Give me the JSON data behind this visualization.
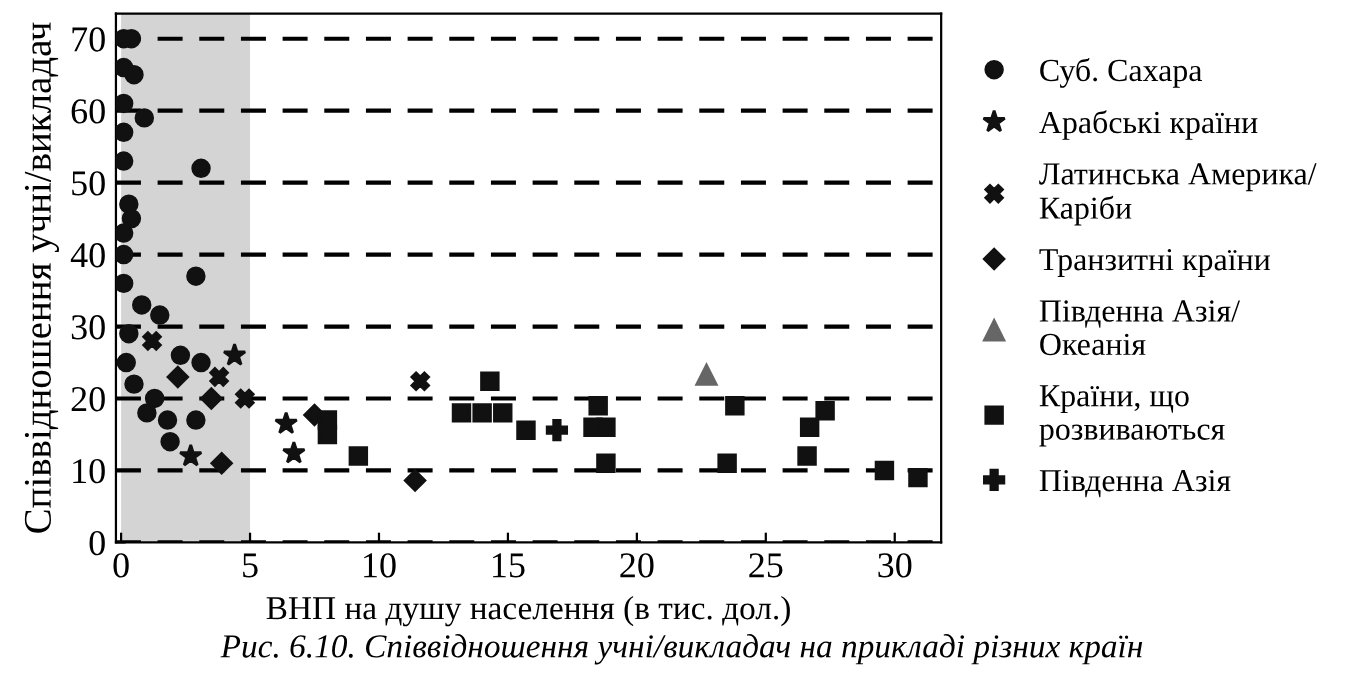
{
  "chart_data": {
    "type": "scatter",
    "xlabel": "ВНП на душу населення (в тис. дол.)",
    "ylabel": "Співвідношення учні/викладач",
    "annotations": [
      "Рис. 6.10. Співвідношення учні/викладач на прикладі різних країн"
    ],
    "xlim": [
      -0.2,
      31.8
    ],
    "ylim": [
      0,
      73.5
    ],
    "xticks": [
      0,
      5,
      10,
      15,
      20,
      25,
      30
    ],
    "yticks": [
      0,
      10,
      20,
      30,
      40,
      50,
      60,
      70
    ],
    "grid": "y",
    "legend": "right",
    "bands": [
      {
        "axis": "x",
        "from": 0,
        "to": 5,
        "color": "#d4d4d4"
      }
    ],
    "series": [
      {
        "name": "Суб. Сахара",
        "color": "#111111",
        "marker": "circle",
        "x": [
          0.1,
          0.4,
          0.1,
          0.5,
          0.1,
          0.9,
          0.1,
          0.1,
          3.1,
          0.3,
          0.4,
          0.1,
          0.1,
          2.9,
          0.1,
          0.8,
          1.5,
          0.3,
          2.3,
          3.1,
          0.5,
          1.3,
          1.8,
          2.9,
          1.9,
          0.2,
          1.0
        ],
        "values": [
          70,
          70,
          66,
          65,
          61,
          59,
          57,
          53,
          52,
          47,
          45,
          43,
          40,
          37,
          36,
          33,
          31.6,
          29,
          26,
          25,
          22,
          20,
          17,
          17,
          14,
          25,
          18
        ]
      },
      {
        "name": "Арабські країни",
        "color": "#111111",
        "marker": "star",
        "x": [
          4.4,
          2.7,
          6.7,
          6.4
        ],
        "values": [
          26,
          12,
          12.4,
          16.5
        ]
      },
      {
        "name": "Латинська Америка/\nКаріби",
        "color": "#111111",
        "marker": "cross",
        "x": [
          4.8,
          11.6,
          1.2,
          3.8
        ],
        "values": [
          20,
          22.4,
          28,
          23
        ]
      },
      {
        "name": "Транзитні країни",
        "color": "#111111",
        "marker": "diamond",
        "x": [
          3.9,
          3.5,
          7.5,
          11.4,
          2.2
        ],
        "values": [
          11,
          20,
          17.7,
          8.6,
          23
        ]
      },
      {
        "name": "Південна Азія/\nОкеанія",
        "color": "#666666",
        "marker": "triangle",
        "x": [
          22.7
        ],
        "values": [
          23.3
        ]
      },
      {
        "name": "Країни, що\nрозвиваються",
        "color": "#111111",
        "marker": "square",
        "x": [
          8.0,
          8.0,
          9.2,
          14.3,
          13.2,
          14.0,
          14.8,
          15.7,
          18.5,
          18.8,
          18.3,
          18.8,
          23.8,
          23.5,
          27.3,
          26.7,
          26.6,
          29.6,
          30.9
        ],
        "values": [
          15,
          17,
          12,
          22.4,
          18,
          18,
          18,
          15.6,
          19,
          16,
          16,
          11,
          19,
          11,
          18.3,
          16,
          12,
          10,
          9
        ]
      },
      {
        "name": "Південна Азія",
        "color": "#111111",
        "marker": "plus",
        "x": [
          16.9
        ],
        "values": [
          15.6
        ]
      }
    ]
  }
}
